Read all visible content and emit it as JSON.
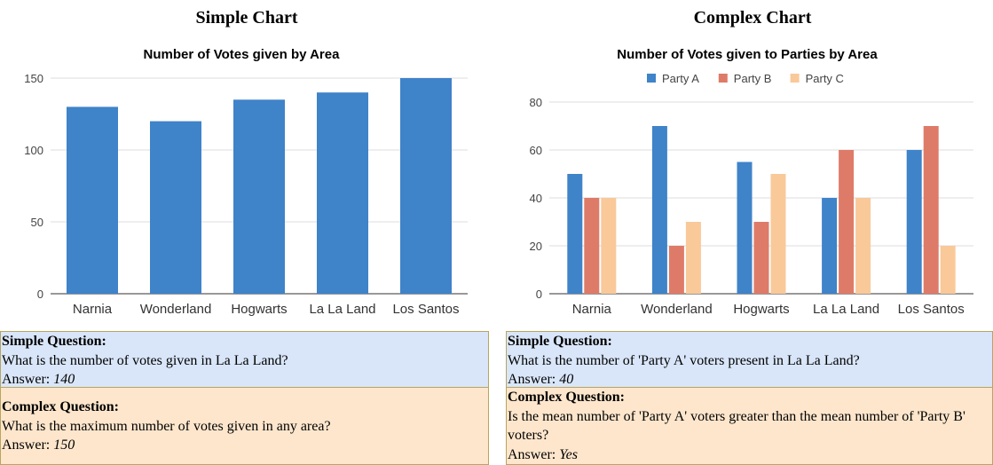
{
  "panels": [
    {
      "heading": "Simple Chart",
      "simple_box": {
        "heading": "Simple Question:",
        "question": "What is the number of votes given in La La Land?",
        "answer_prefix": "Answer:",
        "answer": "140"
      },
      "complex_box": {
        "heading": "Complex Question:",
        "question": "What is the maximum number of votes given in any area?",
        "answer_prefix": "Answer:",
        "answer": "150"
      }
    },
    {
      "heading": "Complex Chart",
      "simple_box": {
        "heading": "Simple Question:",
        "question": "What is the number of 'Party A' voters present in La La Land?",
        "answer_prefix": "Answer:",
        "answer": "40"
      },
      "complex_box": {
        "heading": "Complex Question:",
        "question": "Is the mean number of 'Party A' voters greater than the mean number of 'Party B' voters?",
        "answer_prefix": "Answer:",
        "answer": "Yes"
      }
    }
  ],
  "chart_data": [
    {
      "type": "bar",
      "title": "Number of Votes given by Area",
      "categories": [
        "Narnia",
        "Wonderland",
        "Hogwarts",
        "La La Land",
        "Los Santos"
      ],
      "series": [
        {
          "values": [
            130,
            120,
            135,
            140,
            150
          ],
          "color": "#3f83c9"
        }
      ],
      "yticks": [
        0,
        50,
        100,
        150
      ],
      "ylim": [
        0,
        150
      ],
      "grid": true,
      "legend": "none"
    },
    {
      "type": "bar",
      "title": "Number of Votes given to Parties by Area",
      "categories": [
        "Narnia",
        "Wonderland",
        "Hogwarts",
        "La La Land",
        "Los Santos"
      ],
      "series": [
        {
          "name": "Party A",
          "values": [
            50,
            70,
            55,
            40,
            60
          ],
          "color": "#3f83c9"
        },
        {
          "name": "Party B",
          "values": [
            40,
            20,
            30,
            60,
            70
          ],
          "color": "#de7b68"
        },
        {
          "name": "Party C",
          "values": [
            40,
            30,
            50,
            40,
            20
          ],
          "color": "#f9c99a"
        }
      ],
      "yticks": [
        0,
        20,
        40,
        60,
        80
      ],
      "ylim": [
        0,
        80
      ],
      "grid": true,
      "legend": "top"
    }
  ]
}
